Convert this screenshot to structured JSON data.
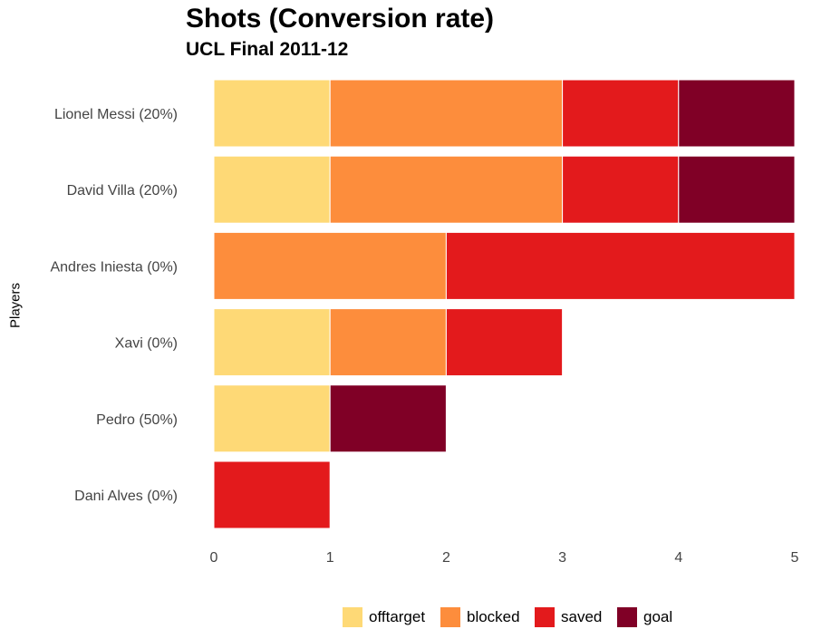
{
  "chart_data": {
    "type": "bar",
    "orientation": "horizontal",
    "stacked": true,
    "title": "Shots (Conversion rate)",
    "subtitle": "UCL Final 2011-12",
    "xlabel": "",
    "ylabel": "Players",
    "categories": [
      "Lionel Messi (20%)",
      "David Villa (20%)",
      "Andres Iniesta (0%)",
      "Xavi (0%)",
      "Pedro (50%)",
      "Dani Alves (0%)"
    ],
    "series": [
      {
        "name": "offtarget",
        "color": "#FED976",
        "values": [
          1,
          1,
          0,
          1,
          1,
          0
        ]
      },
      {
        "name": "blocked",
        "color": "#FD8D3C",
        "values": [
          2,
          2,
          2,
          1,
          0,
          0
        ]
      },
      {
        "name": "saved",
        "color": "#E31A1C",
        "values": [
          1,
          1,
          3,
          1,
          0,
          1
        ]
      },
      {
        "name": "goal",
        "color": "#800026",
        "values": [
          1,
          1,
          0,
          0,
          1,
          0
        ]
      }
    ],
    "xlim": [
      0,
      5
    ],
    "xticks": [
      "0",
      "1",
      "2",
      "3",
      "4",
      "5"
    ],
    "grid": false,
    "legend_position": "bottom"
  }
}
